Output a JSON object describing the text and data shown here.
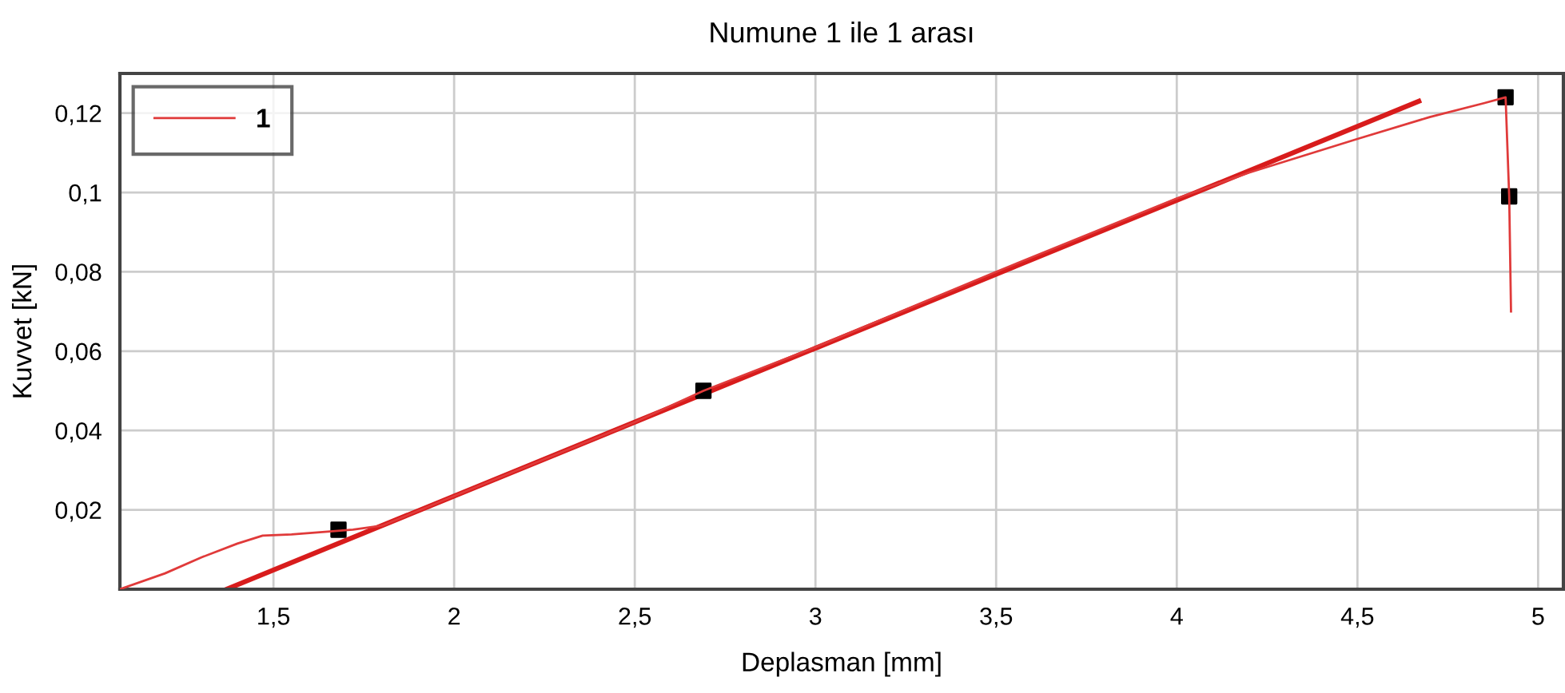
{
  "chart_data": {
    "type": "line",
    "title": "Numune 1 ile 1 arası",
    "xlabel": "Deplasman [mm]",
    "ylabel": "Kuvvet [kN]",
    "series": [
      {
        "name": "1",
        "color": "#e03a3a",
        "x": [
          1.075,
          1.2,
          1.3,
          1.4,
          1.47,
          1.55,
          1.65,
          1.72,
          1.8,
          2.0,
          2.5,
          2.69,
          3.0,
          3.5,
          4.0,
          4.2,
          4.5,
          4.7,
          4.85,
          4.91,
          4.92,
          4.925
        ],
        "values": [
          0,
          0.004,
          0.008,
          0.0115,
          0.0135,
          0.0138,
          0.0145,
          0.015,
          0.016,
          0.0235,
          0.0421,
          0.05,
          0.061,
          0.08,
          0.0985,
          0.105,
          0.1135,
          0.119,
          0.1225,
          0.124,
          0.099,
          0.07
        ]
      },
      {
        "type": "line",
        "color": "#d81c1c",
        "x": [
          1.37,
          4.67
        ],
        "values": [
          0,
          0.123
        ]
      },
      {
        "type": "scatter",
        "color": "#000000",
        "marker": "square",
        "x": [
          1.68,
          2.69,
          4.91,
          4.92
        ],
        "values": [
          0.015,
          0.05,
          0.124,
          0.099
        ]
      }
    ],
    "xlim": [
      1.075,
      5.07
    ],
    "ylim": [
      0,
      0.13
    ],
    "xticks": [
      {
        "value": 1.5,
        "label": "1,5"
      },
      2,
      {
        "value": 2.5,
        "label": "2,5"
      },
      3,
      {
        "value": 3.5,
        "label": "3,5"
      },
      4,
      {
        "value": 4.5,
        "label": "4,5"
      },
      5
    ],
    "yticks": [
      {
        "value": 0.02,
        "label": "0,02"
      },
      {
        "value": 0.04,
        "label": "0,04"
      },
      {
        "value": 0.06,
        "label": "0,06"
      },
      {
        "value": 0.08,
        "label": "0,08"
      },
      {
        "value": 0.1,
        "label": "0,1"
      },
      {
        "value": 0.12,
        "label": "0,12"
      }
    ],
    "grid": true,
    "legend": "top left"
  }
}
